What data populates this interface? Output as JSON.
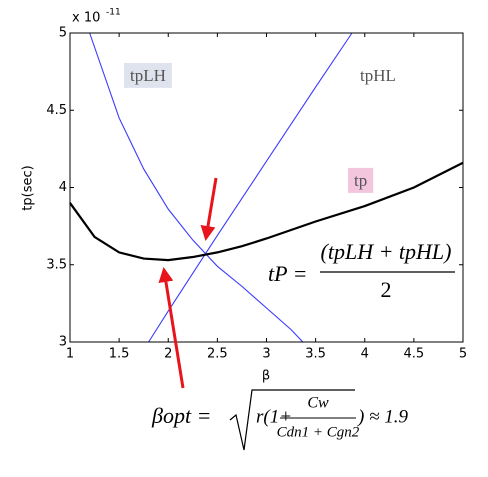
{
  "chart_data": {
    "type": "line",
    "xlabel": "β",
    "ylabel": "tp(sec)",
    "multiplier": "x 10",
    "multiplier_exp": "-11",
    "xlim": [
      1,
      5
    ],
    "ylim": [
      3,
      5
    ],
    "xticks": [
      1,
      1.5,
      2,
      2.5,
      3,
      3.5,
      4,
      4.5,
      5
    ],
    "yticks": [
      3,
      3.5,
      4,
      4.5,
      5
    ],
    "series": [
      {
        "name": "tpLH",
        "color": "#3b3bff",
        "label_bg": "#dfe3ee",
        "x": [
          1.2,
          1.5,
          1.75,
          2,
          2.25,
          2.5,
          2.75,
          3,
          3.25,
          3.37
        ],
        "values": [
          5.0,
          4.45,
          4.12,
          3.86,
          3.66,
          3.49,
          3.36,
          3.22,
          3.08,
          3.0
        ]
      },
      {
        "name": "tpHL",
        "color": "#3b3bff",
        "label_bg": "none",
        "x": [
          1.8,
          2,
          2.5,
          3,
          3.5,
          3.87
        ],
        "values": [
          3.0,
          3.2,
          3.69,
          4.17,
          4.65,
          5.0
        ]
      },
      {
        "name": "tp",
        "color": "#000000",
        "label_bg": "#f4c6de",
        "x": [
          1,
          1.25,
          1.5,
          1.75,
          2,
          2.25,
          2.5,
          2.75,
          3,
          3.5,
          4,
          4.5,
          5
        ],
        "values": [
          3.9,
          3.68,
          3.58,
          3.54,
          3.53,
          3.55,
          3.58,
          3.62,
          3.67,
          3.78,
          3.88,
          4.0,
          4.16
        ]
      }
    ],
    "tp_formula": {
      "lhs": "tP =",
      "numerator": "(tpLH + tpHL)",
      "denominator": "2"
    },
    "beta_formula": {
      "lhs": "βopt =",
      "inner": "r(1+",
      "numerator": "Cw",
      "denominator": "Cdn1 + Cgn2",
      "tail": ") ≈ 1.9"
    }
  }
}
